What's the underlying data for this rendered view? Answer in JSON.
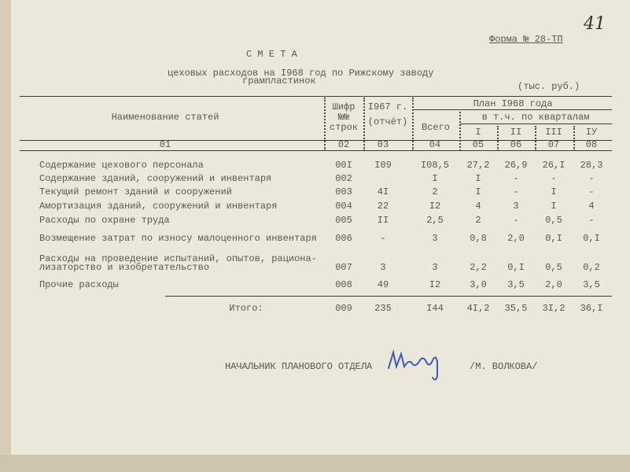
{
  "page_number": "41",
  "form_label": "Форма № 28-ТП",
  "title": "С М Е Т А",
  "subtitle_line1": "цеховых расходов на I968 год по Рижскому заводу",
  "subtitle_line2": "грампластинок",
  "units": "(тыс. руб.)",
  "header": {
    "name": "Наименование статей",
    "code_line1": "Шифр",
    "code_line2": "№№",
    "code_line3": "строк",
    "prev_line1": "I967 г.",
    "prev_line2": "(отчёт)",
    "plan": "План I968 года",
    "total": "Всего",
    "by_quarters": "в т.ч. по кварталам",
    "q1": "I",
    "q2": "II",
    "q3": "III",
    "q4": "IУ",
    "col_nums": [
      "01",
      "02",
      "03",
      "04",
      "05",
      "06",
      "07",
      "08"
    ]
  },
  "rows": [
    {
      "name": "Содержание цехового персонала",
      "code": "00I",
      "prev": "I09",
      "total": "I08,5",
      "q1": "27,2",
      "q2": "26,9",
      "q3": "26,I",
      "q4": "28,3"
    },
    {
      "name": "Содержание зданий, сооружений и инвентаря",
      "code": "002",
      "prev": "",
      "total": "I",
      "q1": "I",
      "q2": "-",
      "q3": "-",
      "q4": "-"
    },
    {
      "name": "Текущий ремонт зданий и сооружений",
      "code": "003",
      "prev": "4I",
      "total": "2",
      "q1": "I",
      "q2": "-",
      "q3": "I",
      "q4": "-"
    },
    {
      "name": "Амортизация зданий, сооружений и инвентаря",
      "code": "004",
      "prev": "22",
      "total": "I2",
      "q1": "4",
      "q2": "3",
      "q3": "I",
      "q4": "4"
    },
    {
      "name": "Расходы по охране труда",
      "code": "005",
      "prev": "II",
      "total": "2,5",
      "q1": "2",
      "q2": "-",
      "q3": "0,5",
      "q4": "-"
    },
    {
      "name": "Возмещение затрат по износу малоценного инвентаря",
      "code": "006",
      "prev": "-",
      "total": "3",
      "q1": "0,8",
      "q2": "2,0",
      "q3": "0,I",
      "q4": "0,I"
    },
    {
      "name": "Расходы на проведение испытаний, опытов, рациона-",
      "name2": "лизаторство и изобретательство",
      "code": "007",
      "prev": "3",
      "total": "3",
      "q1": "2,2",
      "q2": "0,I",
      "q3": "0,5",
      "q4": "0,2"
    },
    {
      "name": "Прочие расходы",
      "code": "008",
      "prev": "49",
      "total": "I2",
      "q1": "3,0",
      "q2": "3,5",
      "q3": "2,0",
      "q4": "3,5"
    }
  ],
  "totals": {
    "name": "Итого:",
    "code": "009",
    "prev": "235",
    "total": "I44",
    "q1": "4I,2",
    "q2": "35,5",
    "q3": "3I,2",
    "q4": "36,I"
  },
  "signature": {
    "position": "НАЧАЛЬНИК ПЛАНОВОГО ОТДЕЛА",
    "name": "/М. ВОЛКОВА/",
    "ink_color": "#3b5bb5"
  }
}
